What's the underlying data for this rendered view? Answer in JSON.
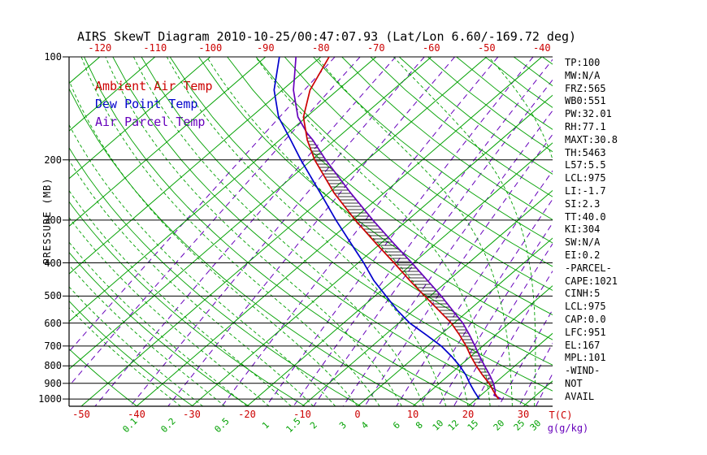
{
  "title": "AIRS SkewT Diagram 2010-10-25/00:47:07.93 (Lat/Lon 6.60/-169.72 deg)",
  "colors": {
    "temp": "#cc0000",
    "dew": "#0000cc",
    "parcel": "#6600bb",
    "grid_green": "#00a000",
    "black": "#000000"
  },
  "legend": {
    "items": [
      {
        "label": "Ambient Air Temp",
        "color": "#cc0000"
      },
      {
        "label": "Dew Point Temp",
        "color": "#0000cc"
      },
      {
        "label": "Air Parcel Temp",
        "color": "#6600bb"
      }
    ]
  },
  "axes": {
    "pressure_label": "PRESSURE (MB)",
    "pressure_ticks": [
      100,
      200,
      300,
      400,
      500,
      600,
      700,
      800,
      900,
      1000
    ],
    "top_temp_ticks": [
      -120,
      -110,
      -100,
      -90,
      -80,
      -70,
      -60,
      -50,
      -40
    ],
    "bottom_temp_ticks": [
      -50,
      -40,
      -30,
      -20,
      -10,
      0,
      10,
      20,
      30
    ],
    "temp_unit_label": "T(C)",
    "mixing_unit_label": "g(g/kg)",
    "mixing_ratio_labels": [
      0.1,
      0.2,
      0.5,
      1,
      1.5,
      2,
      3,
      4,
      6,
      8,
      10,
      12,
      15,
      20,
      25,
      30
    ]
  },
  "stats_panel": {
    "lines": [
      "TP:100",
      "MW:N/A",
      "FRZ:565",
      "WB0:551",
      "PW:32.01",
      "RH:77.1",
      "MAXT:30.8",
      "TH:5463",
      "L57:5.5",
      "LCL:975",
      "LI:-1.7",
      "SI:2.3",
      "TT:40.0",
      "KI:304",
      "SW:N/A",
      "EI:0.2",
      "-PARCEL-",
      "CAPE:1021",
      "CINH:5",
      "LCL:975",
      "CAP:0.0",
      "LFC:951",
      "EL:167",
      "MPL:101",
      "-WIND-",
      "NOT",
      "AVAIL"
    ]
  },
  "chart_data": {
    "type": "line",
    "title": "AIRS SkewT Diagram 2010-10-25/00:47:07.93 (Lat/Lon 6.60/-169.72 deg)",
    "xlabel": "Temperature (C)",
    "ylabel": "Pressure (MB)",
    "pressure_range_mb": [
      100,
      1050
    ],
    "pressure_scale": "log",
    "skew": "45deg isotherms",
    "series": [
      {
        "name": "Ambient Air Temp",
        "color": "#cc0000",
        "points_p_t": [
          [
            1000,
            24
          ],
          [
            950,
            21.5
          ],
          [
            900,
            19
          ],
          [
            850,
            16
          ],
          [
            800,
            13
          ],
          [
            750,
            10
          ],
          [
            700,
            7
          ],
          [
            650,
            3.5
          ],
          [
            600,
            -0.5
          ],
          [
            550,
            -5.5
          ],
          [
            500,
            -11
          ],
          [
            450,
            -17
          ],
          [
            400,
            -23.5
          ],
          [
            350,
            -31
          ],
          [
            300,
            -39.5
          ],
          [
            250,
            -49
          ],
          [
            200,
            -59.5
          ],
          [
            175,
            -65
          ],
          [
            150,
            -70.5
          ],
          [
            125,
            -75
          ],
          [
            100,
            -78.5
          ]
        ]
      },
      {
        "name": "Dew Point Temp",
        "color": "#0000cc",
        "points_p_t": [
          [
            1000,
            20.5
          ],
          [
            950,
            18
          ],
          [
            900,
            15.5
          ],
          [
            850,
            13
          ],
          [
            800,
            10
          ],
          [
            750,
            6.5
          ],
          [
            700,
            2.5
          ],
          [
            650,
            -2.5
          ],
          [
            600,
            -8
          ],
          [
            550,
            -13
          ],
          [
            500,
            -18
          ],
          [
            450,
            -23.5
          ],
          [
            400,
            -29
          ],
          [
            350,
            -35.5
          ],
          [
            300,
            -43
          ],
          [
            250,
            -51.5
          ],
          [
            200,
            -62
          ],
          [
            175,
            -68
          ],
          [
            150,
            -75
          ],
          [
            125,
            -81.5
          ],
          [
            100,
            -87.5
          ]
        ]
      },
      {
        "name": "Air Parcel Temp",
        "color": "#6600bb",
        "points_p_t": [
          [
            1000,
            24.5
          ],
          [
            975,
            22.4
          ],
          [
            950,
            21.8
          ],
          [
            900,
            19.8
          ],
          [
            850,
            17.3
          ],
          [
            800,
            14.5
          ],
          [
            750,
            11.6
          ],
          [
            700,
            8.6
          ],
          [
            650,
            5.3
          ],
          [
            600,
            1.6
          ],
          [
            550,
            -3.0
          ],
          [
            500,
            -8.0
          ],
          [
            450,
            -13.8
          ],
          [
            400,
            -20.3
          ],
          [
            350,
            -27.8
          ],
          [
            300,
            -36.3
          ],
          [
            250,
            -46.0
          ],
          [
            200,
            -57.5
          ],
          [
            175,
            -64.0
          ],
          [
            167,
            -66.5
          ],
          [
            150,
            -71.5
          ],
          [
            125,
            -78.0
          ],
          [
            100,
            -84.5
          ]
        ]
      }
    ],
    "cape_region": {
      "between": [
        "Air Parcel Temp",
        "Ambient Air Temp"
      ],
      "pressure_span_mb": [
        951,
        167
      ],
      "hatch": "horizontal"
    },
    "grid": {
      "isotherms_c": {
        "min": -130,
        "max": 40,
        "step": 10
      },
      "dry_adiabats_theta_k": {
        "min": 230,
        "max": 450,
        "step": 10
      },
      "moist_adiabats_start_c": {
        "min": -32,
        "max": 40,
        "step": 4
      },
      "mixing_ratio_lines_g_kg": [
        0.01,
        0.02,
        0.05,
        0.1,
        0.2,
        0.5,
        1,
        1.5,
        2,
        3,
        4,
        6,
        8,
        10,
        12,
        15,
        20,
        25,
        30
      ]
    }
  }
}
